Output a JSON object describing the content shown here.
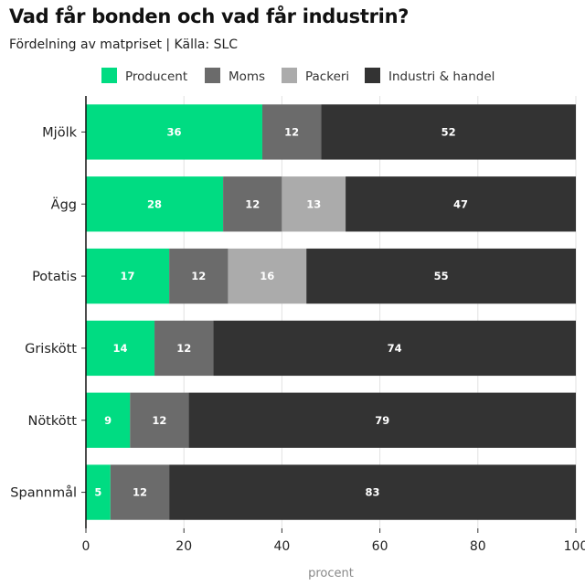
{
  "chart_data": {
    "type": "bar",
    "orientation": "horizontal",
    "stacked": true,
    "title": "Vad får bonden och vad får industrin?",
    "subtitle": "Fördelning av matpriset | Källa: SLC",
    "xlabel": "procent",
    "ylabel": "",
    "xlim": [
      0,
      100
    ],
    "xticks": [
      0,
      20,
      40,
      60,
      80,
      100
    ],
    "grid": true,
    "legend_position": "top",
    "categories": [
      "Mjölk",
      "Ägg",
      "Potatis",
      "Griskött",
      "Nötkött",
      "Spannmål"
    ],
    "series": [
      {
        "name": "Producent",
        "color": "#00dc82",
        "values": [
          36,
          28,
          17,
          14,
          9,
          5
        ]
      },
      {
        "name": "Moms",
        "color": "#6b6b6b",
        "values": [
          12,
          12,
          12,
          12,
          12,
          12
        ]
      },
      {
        "name": "Packeri",
        "color": "#ababab",
        "values": [
          0,
          13,
          16,
          0,
          0,
          0
        ]
      },
      {
        "name": "Industri & handel",
        "color": "#333333",
        "values": [
          52,
          47,
          55,
          74,
          79,
          83
        ]
      }
    ]
  }
}
